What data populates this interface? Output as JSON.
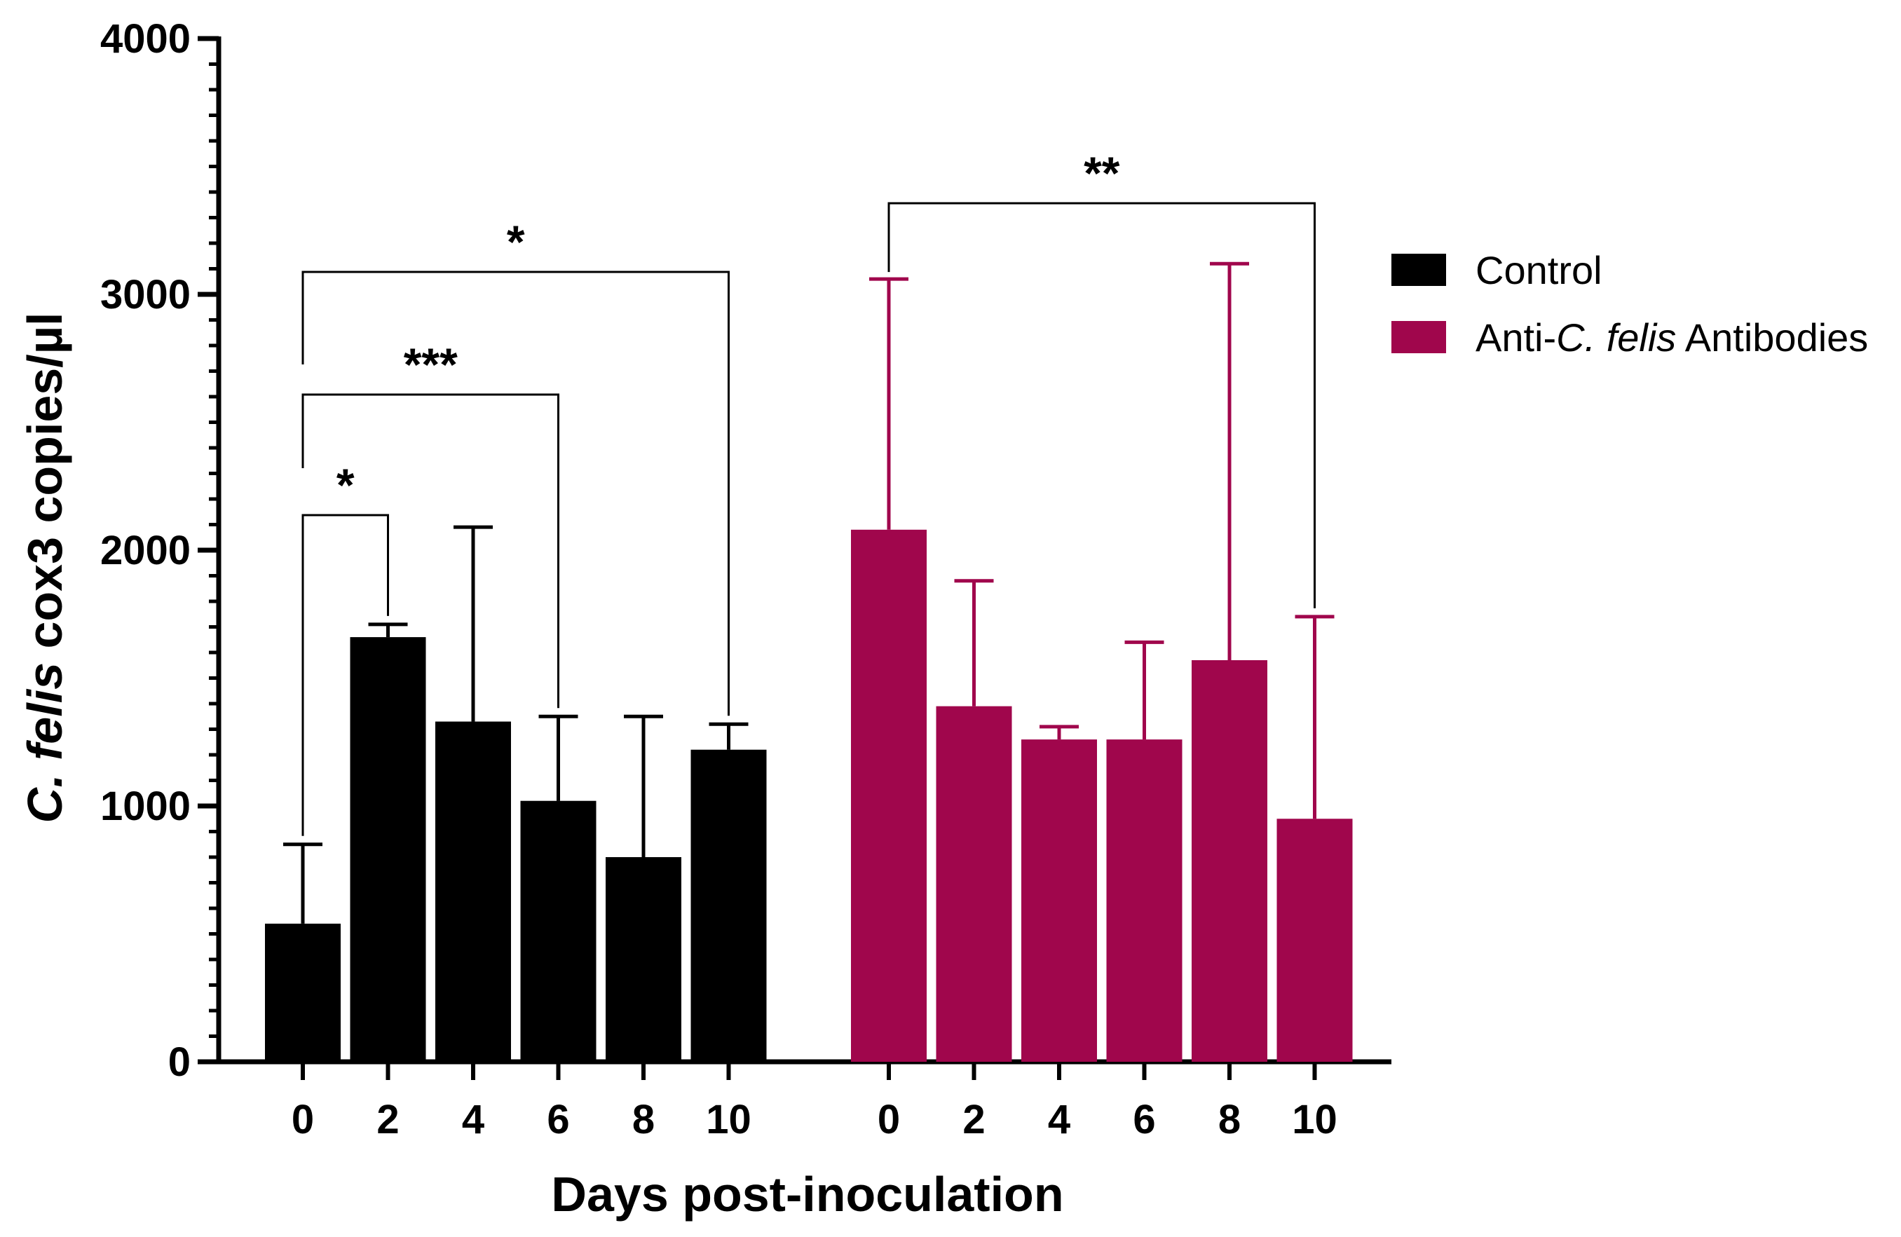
{
  "chart_data": {
    "type": "bar",
    "title": "",
    "xlabel": "Days post-inoculation",
    "ylabel": {
      "italic": "C. felis",
      "rest": " cox3 copies/µl"
    },
    "ylim": [
      0,
      4000
    ],
    "yticks": [
      "0",
      "1000",
      "2000",
      "3000",
      "4000"
    ],
    "grid": false,
    "legend_position": "right",
    "groups": [
      {
        "name": "Control",
        "legend_label": {
          "pre": "Control",
          "italic": "",
          "post": ""
        },
        "color": "#000000",
        "categories": [
          "0",
          "2",
          "4",
          "6",
          "8",
          "10"
        ],
        "values": [
          540,
          1660,
          1330,
          1020,
          800,
          1220
        ],
        "error_upper": [
          850,
          1710,
          2090,
          1350,
          1350,
          1320
        ]
      },
      {
        "name": "Anti-C. felis Antibodies",
        "legend_label": {
          "pre": "Anti-",
          "italic": "C. felis",
          "post": " Antibodies"
        },
        "color": "#a0064c",
        "categories": [
          "0",
          "2",
          "4",
          "6",
          "8",
          "10"
        ],
        "values": [
          2080,
          1390,
          1260,
          1260,
          1570,
          950
        ],
        "error_upper": [
          3060,
          1880,
          1310,
          1640,
          3120,
          1740
        ]
      }
    ],
    "significance": [
      {
        "group": 0,
        "from": 0,
        "to": 1,
        "label": "*"
      },
      {
        "group": 0,
        "from": 0,
        "to": 3,
        "label": "***"
      },
      {
        "group": 0,
        "from": 0,
        "to": 5,
        "label": "*"
      },
      {
        "group": 1,
        "from": 0,
        "to": 5,
        "label": "**"
      }
    ]
  }
}
